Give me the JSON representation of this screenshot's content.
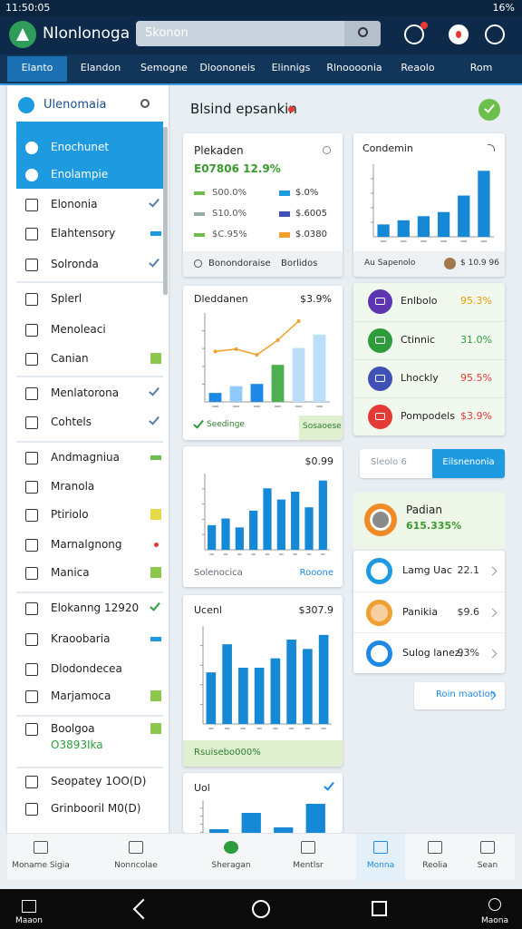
{
  "status": {
    "time": "11:50:05",
    "battery": "16%"
  },
  "header": {
    "app_name": "Nlonlonoga",
    "search_placeholder": "Skonon"
  },
  "tabs": [
    "Elanto",
    "Elandon",
    "Semogne",
    "Dloononeis",
    "Elinnigs",
    "Rlnoooonia",
    "Reaolo",
    "Rom"
  ],
  "sidebar": {
    "title": "Ulenomaia",
    "items": [
      {
        "label": "Enochunet"
      },
      {
        "label": "Enolampie"
      },
      {
        "label": "Elononia"
      },
      {
        "label": "Elahtensory"
      },
      {
        "label": "Solronda"
      },
      {
        "label": "Splerl"
      },
      {
        "label": "Menoleaci"
      },
      {
        "label": "Canian"
      },
      {
        "label": "Menlatorona"
      },
      {
        "label": "Cohtels"
      },
      {
        "label": "Andmagniua"
      },
      {
        "label": "Mranola"
      },
      {
        "label": "Ptiriolo"
      },
      {
        "label": "Marnalgnong"
      },
      {
        "label": "Manica"
      },
      {
        "label": "Elokanng 12920"
      },
      {
        "label": "Kraoobaria"
      },
      {
        "label": "Dlodondecea"
      },
      {
        "label": "Marjamoca"
      },
      {
        "label": "Boolgoa",
        "sub": "O3893Ika"
      },
      {
        "label": "Seopatey 1OO(D)"
      },
      {
        "label": "Grinbooril M0(D)"
      }
    ]
  },
  "section_title": "Blsind epsankin",
  "cards": [
    {
      "title": "Plekaden",
      "subtitle": "E07806 12.9%",
      "rows": [
        [
          "S00.0%",
          "$.0%"
        ],
        [
          "S10.0%",
          "$.6005"
        ],
        [
          "$C.95%",
          "$.0380"
        ]
      ],
      "footer": [
        "Bonondoraise",
        "Borlidos"
      ]
    },
    {
      "title": "Dleddanen",
      "value": "$3.9%",
      "chart": {
        "values": [
          8,
          14,
          16,
          33,
          48,
          60
        ],
        "colors": [
          "#1e88e5",
          "#90caf9",
          "#1e88e5",
          "#4caf50",
          "#bbdefb",
          "#bbdefb"
        ],
        "line": [
          45,
          47,
          42,
          55,
          72
        ],
        "line_color": "#f0a030"
      },
      "footer": [
        "Seedinge",
        "Sosaoese"
      ]
    },
    {
      "value": "$0.99",
      "chart": {
        "values": [
          22,
          28,
          20,
          35,
          55,
          45,
          52,
          38,
          62
        ],
        "color": "#1589d6"
      },
      "footer": [
        "Solenocica",
        "Rooone"
      ]
    },
    {
      "title": "Ucenl",
      "value": "$307.9",
      "chart": {
        "values": [
          55,
          85,
          60,
          60,
          70,
          90,
          80,
          95
        ],
        "color": "#1589d6"
      },
      "footer": [
        "Rsuisebo000%"
      ]
    },
    {
      "title": "Uol",
      "chart": {
        "values": [
          12,
          30,
          14,
          40
        ],
        "color": "#1589d6"
      }
    }
  ],
  "right": {
    "chart_card": {
      "title": "Condemin",
      "values": [
        15,
        20,
        25,
        30,
        50,
        80
      ],
      "color": "#1589d6",
      "footer": [
        "Au Sapenolo",
        "$ 10.9 96"
      ]
    },
    "list": [
      {
        "label": "Enlbolo",
        "value": "95.3%",
        "color": "#5e35b1",
        "value_color": "#e69a00"
      },
      {
        "label": "Ctinnic",
        "value": "31.0%",
        "color": "#2e9c3a",
        "value_color": "#2e9c3a"
      },
      {
        "label": "Lhockly",
        "value": "95.5%",
        "color": "#3f51b5",
        "value_color": "#e53935"
      },
      {
        "label": "Pompodels",
        "value": "$3.9%",
        "color": "#e53935",
        "value_color": "#e53935"
      }
    ],
    "segments": [
      "Sleolo 6",
      "Eilsnenonia"
    ],
    "summary": {
      "title": "Padian",
      "value": "615.335%"
    },
    "list2": [
      {
        "label": "Lamg Uac",
        "value": "22.1"
      },
      {
        "label": "Panikia",
        "value": "$9.6"
      },
      {
        "label": "Sulog lanez,",
        "value": "93%"
      }
    ],
    "button": "Roin maotion"
  },
  "bottom_nav": [
    "Moname Sigia",
    "Nonncolae",
    "Sheragan",
    "Mentlsr",
    "Monna",
    "Reolia",
    "Sean"
  ],
  "system_nav": [
    "Maaon",
    "Maona"
  ]
}
